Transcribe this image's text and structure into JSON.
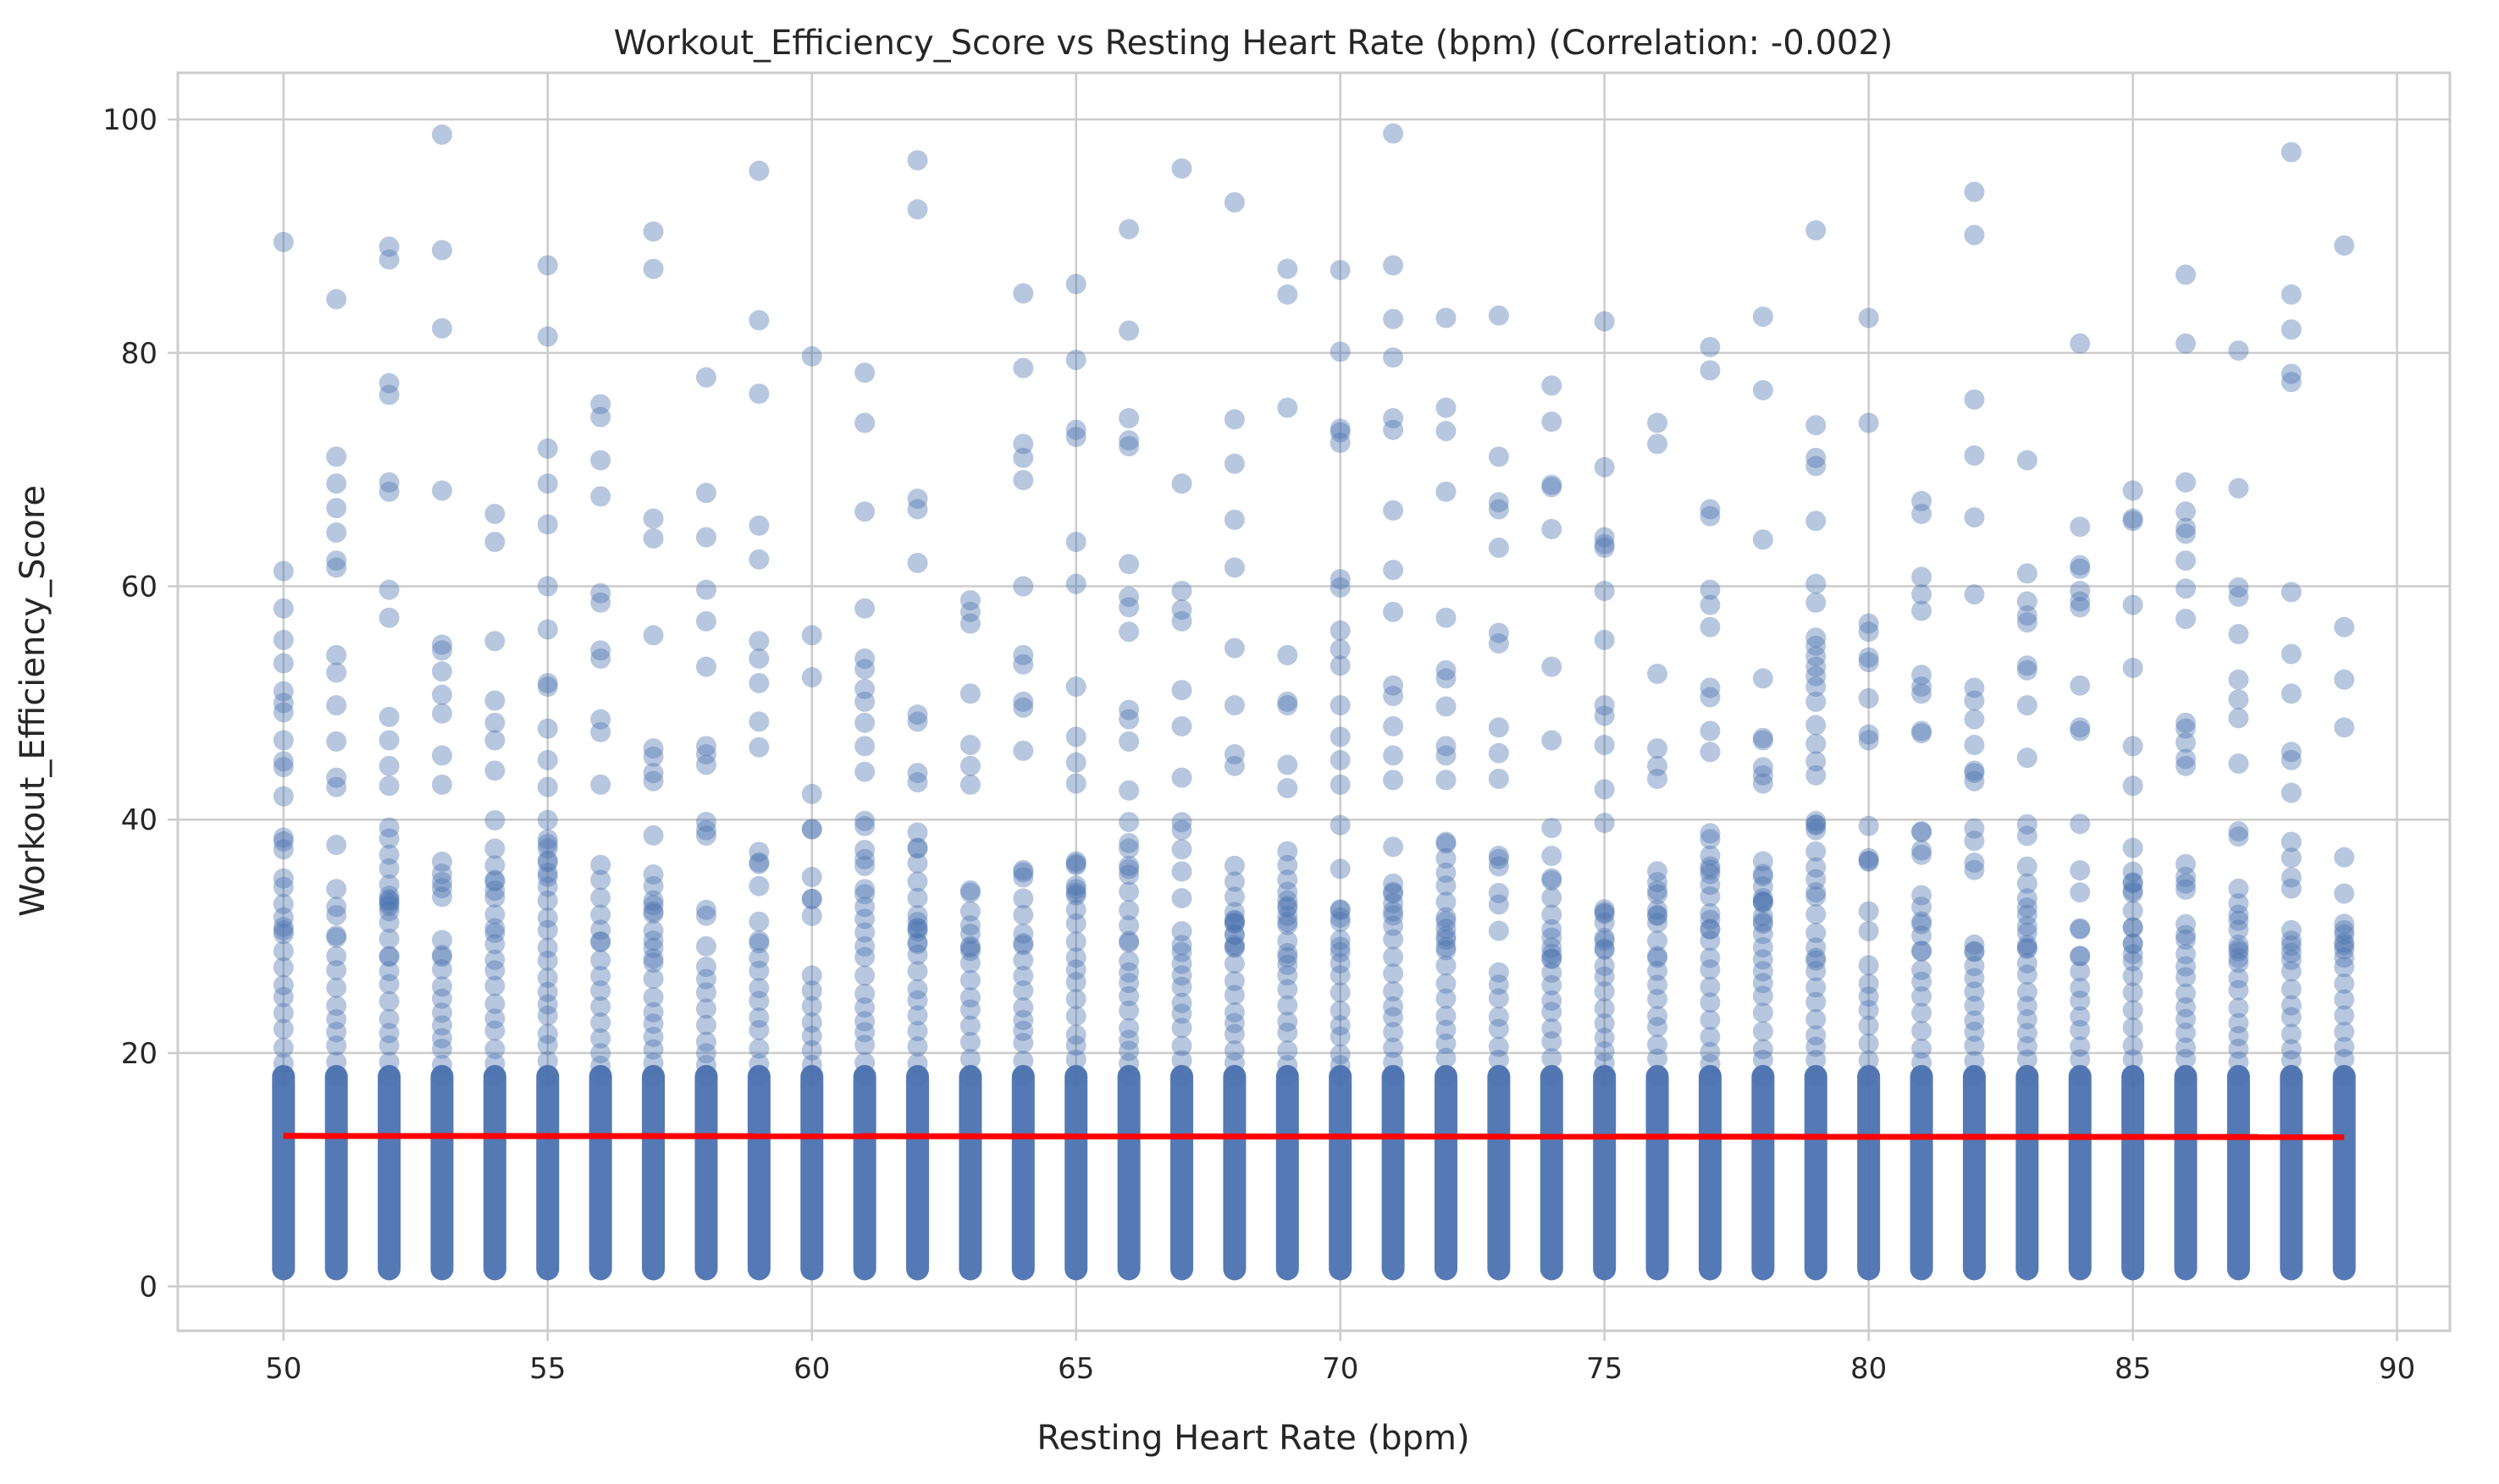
{
  "chart_data": {
    "type": "scatter",
    "title": "Workout_Efficiency_Score vs Resting Heart Rate (bpm) (Correlation: -0.002)",
    "xlabel": "Resting Heart Rate (bpm)",
    "ylabel": "Workout_Efficiency_Score",
    "xlim": [
      48,
      91
    ],
    "ylim": [
      -3.8,
      104
    ],
    "xticks": [
      "50",
      "55",
      "60",
      "65",
      "70",
      "75",
      "80",
      "85",
      "90"
    ],
    "yticks": [
      "0",
      "20",
      "40",
      "60",
      "80",
      "100"
    ],
    "grid": true,
    "point_color": "#4c72b0",
    "point_opacity": 0.4,
    "trend_color": "#ff0000",
    "trendline": {
      "x": [
        50,
        89
      ],
      "y": [
        12.9,
        12.8
      ]
    },
    "scatter_x_range": [
      50,
      89
    ],
    "outliers": {
      "50": [
        89.5,
        61.3,
        58.1,
        55.4,
        53.4,
        51.0,
        50.0,
        49.2,
        46.8,
        45.0,
        44.5,
        42.0
      ],
      "51": [
        84.6,
        71.1,
        68.8,
        66.7,
        64.6,
        62.2,
        61.6,
        54.1,
        52.6,
        49.8,
        46.7,
        43.6,
        42.8
      ],
      "52": [
        89.1,
        88.0,
        77.4,
        76.4,
        68.9,
        68.1,
        59.7,
        57.3,
        48.8,
        46.8,
        44.6,
        42.9
      ],
      "53": [
        98.7,
        88.8,
        82.1,
        68.2,
        55.0,
        54.5,
        52.7,
        50.7,
        49.1,
        45.5,
        43.0
      ],
      "54": [
        66.2,
        63.8,
        55.3,
        50.2,
        48.3,
        46.8,
        44.2
      ],
      "55": [
        87.5,
        81.4,
        71.8,
        68.8,
        65.3,
        60.0,
        56.3,
        51.7,
        51.4,
        47.8,
        45.1,
        42.8
      ],
      "56": [
        75.6,
        74.5,
        70.8,
        67.7,
        59.4,
        58.6,
        54.5,
        53.8,
        48.6,
        47.5,
        43.0
      ],
      "57": [
        90.4,
        87.2,
        65.8,
        64.1,
        55.8,
        46.1,
        45.4,
        44.0,
        43.3
      ],
      "58": [
        77.9,
        68.0,
        64.2,
        59.7,
        57.0,
        53.1,
        46.3,
        45.6,
        44.7
      ],
      "59": [
        95.6,
        82.8,
        76.5,
        65.2,
        62.3,
        55.3,
        53.8,
        51.7,
        48.4,
        46.2
      ],
      "60": [
        79.7,
        55.8,
        52.2,
        42.2
      ],
      "61": [
        78.3,
        74.0,
        66.4,
        58.1,
        53.8,
        52.9,
        51.2,
        50.1,
        48.3,
        46.3,
        44.1
      ],
      "62": [
        96.5,
        92.3,
        67.5,
        66.6,
        62.0,
        49.0,
        48.4,
        44.0,
        43.2
      ],
      "63": [
        58.8,
        57.8,
        56.8,
        50.8,
        46.4,
        44.6,
        43.0
      ],
      "64": [
        85.1,
        78.7,
        72.2,
        71.0,
        69.1,
        60.0,
        54.1,
        53.3,
        50.1,
        49.6,
        45.9
      ],
      "65": [
        85.9,
        79.4,
        73.4,
        72.8,
        63.8,
        60.2,
        51.4,
        47.1,
        44.9,
        43.1
      ],
      "66": [
        90.6,
        81.9,
        74.4,
        72.5,
        72.0,
        61.9,
        59.1,
        58.2,
        56.1,
        49.4,
        48.6,
        46.7,
        42.5
      ],
      "67": [
        95.8,
        68.8,
        59.6,
        58.0,
        57.0,
        51.1,
        48.0,
        43.6
      ],
      "68": [
        92.9,
        74.3,
        70.5,
        65.7,
        61.6,
        54.7,
        49.8,
        45.6,
        44.6
      ],
      "69": [
        87.2,
        85.0,
        75.3,
        54.1,
        50.1,
        49.8,
        44.7,
        42.7
      ],
      "70": [
        87.1,
        80.1,
        73.5,
        73.2,
        72.3,
        60.6,
        59.9,
        56.2,
        54.6,
        53.2,
        49.8,
        47.1,
        45.1,
        43.0
      ],
      "71": [
        98.8,
        87.5,
        82.9,
        79.6,
        74.4,
        73.4,
        66.5,
        61.4,
        57.8,
        51.5,
        50.6,
        48.0,
        45.5,
        43.4
      ],
      "72": [
        83.0,
        75.3,
        73.3,
        68.1,
        57.3,
        52.8,
        52.1,
        49.7,
        46.3,
        45.5,
        43.4
      ],
      "73": [
        83.2,
        71.1,
        67.2,
        66.6,
        63.3,
        56.0,
        55.1,
        47.9,
        45.7,
        43.5
      ],
      "74": [
        77.2,
        74.1,
        68.7,
        68.5,
        64.9,
        53.1,
        46.8
      ],
      "75": [
        82.7,
        70.2,
        64.2,
        63.6,
        63.3,
        59.6,
        55.4,
        49.8,
        48.9,
        46.4,
        42.6
      ],
      "76": [
        74.0,
        72.2,
        52.5,
        46.1,
        44.6,
        43.5
      ],
      "77": [
        80.5,
        78.5,
        66.6,
        66.0,
        59.7,
        58.4,
        56.5,
        51.3,
        50.5,
        47.6,
        45.8
      ],
      "78": [
        83.1,
        76.8,
        64.0,
        52.1,
        47.0,
        46.8,
        44.5,
        43.8,
        43.1
      ],
      "79": [
        90.5,
        73.8,
        71.0,
        70.3,
        65.6,
        60.2,
        58.6,
        55.6,
        54.9,
        54.0,
        53.1,
        52.3,
        51.4,
        50.1,
        48.1,
        46.5,
        45.0,
        43.8
      ],
      "80": [
        83.0,
        74.0,
        56.8,
        56.1,
        53.9,
        53.5,
        50.4,
        47.3,
        46.8
      ],
      "81": [
        67.3,
        66.2,
        60.8,
        59.3,
        57.9,
        52.4,
        51.4,
        50.8,
        47.6,
        47.4
      ],
      "82": [
        93.8,
        90.1,
        76.0,
        71.2,
        65.9,
        59.3,
        51.3,
        50.2,
        48.6,
        46.4,
        44.2,
        44.0,
        43.3
      ],
      "83": [
        70.8,
        61.1,
        58.7,
        57.5,
        56.9,
        53.2,
        52.8,
        49.8,
        45.3
      ],
      "84": [
        80.8,
        65.1,
        61.8,
        61.5,
        59.6,
        58.7,
        58.2,
        51.5,
        47.9,
        47.6
      ],
      "85": [
        68.2,
        65.8,
        65.6,
        58.4,
        53.0,
        46.3,
        42.9
      ],
      "86": [
        86.7,
        80.8,
        68.9,
        66.4,
        65.0,
        64.5,
        62.2,
        59.8,
        57.2,
        48.3,
        47.8,
        46.6,
        45.2,
        44.6
      ],
      "87": [
        80.2,
        68.4,
        59.9,
        59.1,
        55.9,
        52.0,
        50.3,
        48.7,
        44.8
      ],
      "88": [
        97.2,
        85.0,
        82.0,
        78.2,
        77.5,
        59.5,
        54.2,
        50.8,
        45.8,
        45.1,
        42.3
      ],
      "89": [
        89.2,
        56.5,
        52.0,
        47.9
      ]
    }
  }
}
